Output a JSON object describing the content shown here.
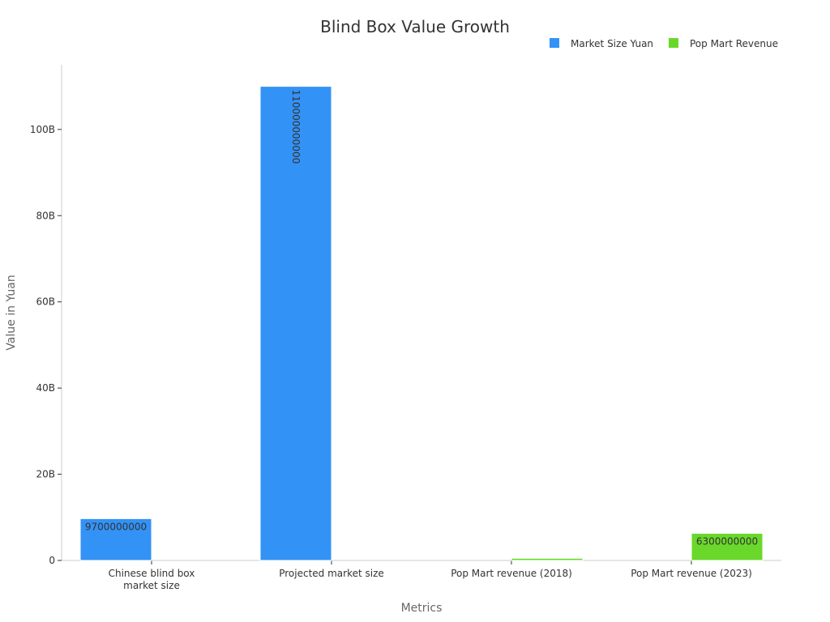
{
  "chart_data": {
    "type": "bar",
    "title": "Blind Box Value Growth",
    "xlabel": "Metrics",
    "ylabel": "Value in Yuan",
    "ylim": [
      0,
      115000000000
    ],
    "yticks": [
      {
        "value": 0,
        "label": "0"
      },
      {
        "value": 20000000000,
        "label": "20B"
      },
      {
        "value": 40000000000,
        "label": "40B"
      },
      {
        "value": 60000000000,
        "label": "60B"
      },
      {
        "value": 80000000000,
        "label": "80B"
      },
      {
        "value": 100000000000,
        "label": "100B"
      }
    ],
    "categories": [
      [
        "Chinese blind box",
        "market size"
      ],
      [
        "Projected market size"
      ],
      [
        "Pop Mart revenue (2018)"
      ],
      [
        "Pop Mart revenue (2023)"
      ]
    ],
    "legend_position": "top-right",
    "series": [
      {
        "name": "Market Size Yuan",
        "color": "#3392f5",
        "values": [
          9700000000,
          110000000000,
          null,
          null
        ],
        "labels": [
          "9700000000",
          "110000000000",
          null,
          null
        ]
      },
      {
        "name": "Pop Mart Revenue",
        "color": "#6ad82a",
        "values": [
          null,
          null,
          500000000,
          6300000000
        ],
        "labels": [
          null,
          null,
          null,
          "6300000000"
        ]
      }
    ]
  }
}
